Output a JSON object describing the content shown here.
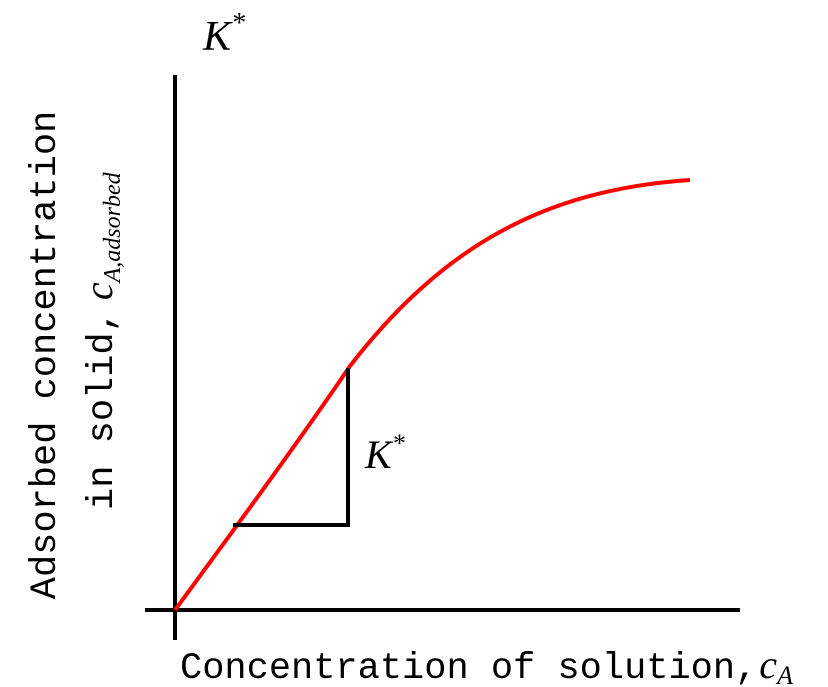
{
  "title": {
    "base": "K",
    "sup": "*"
  },
  "y_axis_label": {
    "line1": "Adsorbed concentration",
    "line2": "in solid,",
    "symbol": "c",
    "subscript": "A,adsorbed"
  },
  "x_axis_label": {
    "text": "Concentration of solution,",
    "symbol": "c",
    "subscript": "A"
  },
  "slope_label": {
    "base": "K",
    "sup": "*"
  }
}
